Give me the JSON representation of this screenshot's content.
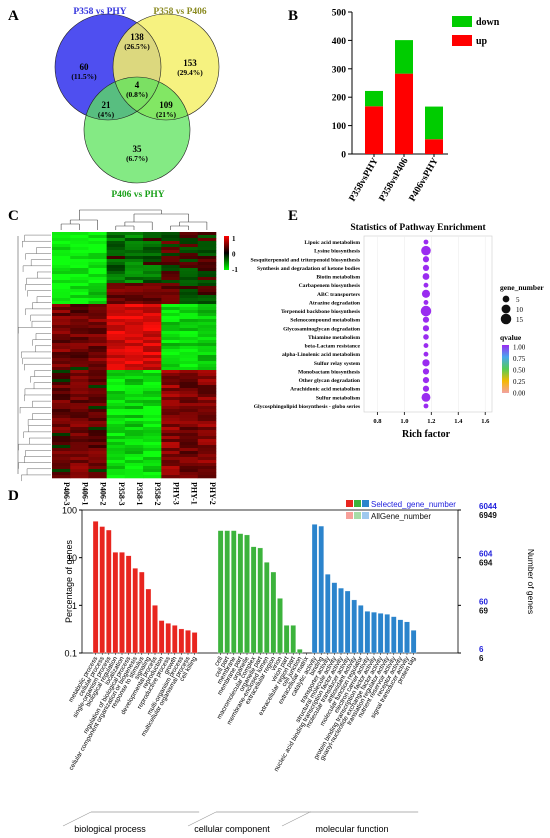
{
  "panels": {
    "a": "A",
    "b": "B",
    "c": "C",
    "d": "D",
    "e": "E"
  },
  "chart_data": [
    {
      "panel": "A",
      "type": "venn",
      "sets": [
        "P358 vs PHY",
        "P358 vs P406",
        "P406 vs PHY"
      ],
      "set_colors": [
        "#4f4ff0",
        "#f5f06a",
        "#5be35b"
      ],
      "regions": [
        {
          "sets": [
            "P358 vs PHY"
          ],
          "count": "60",
          "pct": "(11.5%)"
        },
        {
          "sets": [
            "P358 vs P406"
          ],
          "count": "153",
          "pct": "(29.4%)"
        },
        {
          "sets": [
            "P406 vs PHY"
          ],
          "count": "35",
          "pct": "(6.7%)"
        },
        {
          "sets": [
            "P358 vs PHY",
            "P358 vs P406"
          ],
          "count": "138",
          "pct": "(26.5%)"
        },
        {
          "sets": [
            "P358 vs PHY",
            "P406 vs PHY"
          ],
          "count": "21",
          "pct": "(4%)"
        },
        {
          "sets": [
            "P358 vs P406",
            "P406 vs PHY"
          ],
          "count": "109",
          "pct": "(21%)"
        },
        {
          "sets": [
            "P358 vs PHY",
            "P358 vs P406",
            "P406 vs PHY"
          ],
          "count": "4",
          "pct": "(0.8%)"
        }
      ]
    },
    {
      "panel": "B",
      "type": "bar",
      "stacked": true,
      "categories": [
        "P358vsPHY",
        "P358vsP406",
        "P406vsPHY"
      ],
      "series": [
        {
          "name": "up",
          "color": "#ff0000",
          "values": [
            168,
            283,
            52
          ]
        },
        {
          "name": "down",
          "color": "#00cc00",
          "values": [
            54,
            118,
            115
          ]
        }
      ],
      "ylim": [
        0,
        500
      ],
      "yticks": [
        "0",
        "100",
        "200",
        "300",
        "400",
        "500"
      ],
      "legend": "top-right"
    },
    {
      "panel": "C",
      "type": "heatmap",
      "columns": [
        "P406-3",
        "P406-1",
        "P406-2",
        "P358-3",
        "P358-1",
        "P358-2",
        "PHY-3",
        "PHY-1",
        "PHY-2"
      ],
      "scale_labels": [
        "1",
        "0",
        "-1"
      ],
      "colors": {
        "high": "#ff0000",
        "mid": "#000000",
        "low": "#00ff00"
      }
    },
    {
      "panel": "E",
      "type": "scatter",
      "title": "Statistics of Pathway Enrichment",
      "xlabel": "Rich factor",
      "xticks": [
        "0.8",
        "1.0",
        "1.2",
        "1.4",
        "1.6"
      ],
      "xlim": [
        0.7,
        1.65
      ],
      "categories": [
        "Lipoic acid metabolism",
        "Lysine biosynthesis",
        "Sesquiterpenoid and triterpenoid biosynthesis",
        "Synthesis and degradation of ketone bodies",
        "Biotin metabolism",
        "Carbapenem biosynthesis",
        "ABC transporters",
        "Atrazine degradation",
        "Terpenoid backbone biosynthesis",
        "Selenocompound metabolism",
        "Glycosaminoglycan degradation",
        "Thiamine metabolism",
        "beta-Lactam resistance",
        "alpha-Linolenic acid metabolism",
        "Sulfur relay system",
        "Monobactam biosynthesis",
        "Other glycan degradation",
        "Arachidonic acid metabolism",
        "Sulfur metabolism",
        "Glycosphingolipid biosynthesis - globo series"
      ],
      "rich_factor": [
        1.16,
        1.16,
        1.16,
        1.16,
        1.16,
        1.16,
        1.16,
        1.16,
        1.16,
        1.16,
        1.16,
        1.16,
        1.16,
        1.16,
        1.16,
        1.16,
        1.16,
        1.16,
        1.16,
        1.16
      ],
      "gene_number": [
        2,
        12,
        4,
        4,
        5,
        2,
        8,
        2,
        15,
        4,
        4,
        3,
        2,
        2,
        6,
        4,
        4,
        4,
        10,
        2
      ],
      "qvalue": [
        1.0,
        0.98,
        1.0,
        1.0,
        1.0,
        1.0,
        0.97,
        1.0,
        0.95,
        1.0,
        1.0,
        1.0,
        1.0,
        1.0,
        0.98,
        1.0,
        1.0,
        1.0,
        0.96,
        1.0
      ],
      "legend": {
        "size_title": "gene_number",
        "size_values": [
          "5",
          "10",
          "15"
        ],
        "color_title": "qvalue",
        "color_ticks": [
          "1.00",
          "0.75",
          "0.50",
          "0.25",
          "0.00"
        ]
      }
    },
    {
      "panel": "D",
      "type": "bar",
      "ylabel": "Percentage of genes",
      "ylabel_right": "Number of genes",
      "yscale": "log",
      "ylim": [
        0.1,
        100
      ],
      "yticks_left": [
        "100",
        "10",
        "1",
        "0.1"
      ],
      "yticks_right_selected": [
        "6044",
        "604",
        "60",
        "6"
      ],
      "yticks_right_all": [
        "6949",
        "694",
        "69",
        "6"
      ],
      "legend": [
        "Selected_gene_number",
        "AllGene_number"
      ],
      "groups": [
        {
          "name": "biological process",
          "color": "#e8251f",
          "light": "#f7a09a",
          "categories": [
            "metabolic process",
            "cellular process",
            "single-organism process",
            "biological regulation",
            "localization",
            "regulation of biological process",
            "cellular component organization or biogenesis",
            "response to stimulus",
            "signaling",
            "developmental process",
            "reproduction",
            "reproductive process",
            "growth",
            "multi-organism process",
            "multicellular organismal process",
            "cell killing"
          ],
          "values": [
            58,
            45,
            38,
            13,
            13,
            11,
            6,
            5,
            2.2,
            1.0,
            0.48,
            0.42,
            0.38,
            0.32,
            0.3,
            0.27
          ]
        },
        {
          "name": "cellular component",
          "color": "#3cb33c",
          "light": "#a6dca6",
          "categories": [
            "cell",
            "cell part",
            "membrane",
            "membrane part",
            "organelle",
            "macromolecular complex",
            "organelle part",
            "membrane-enclosed lumen",
            "extracellular region",
            "virion",
            "virion part",
            "extracellular region part",
            "cell junction",
            "extracellular matrix"
          ],
          "values": [
            37,
            37,
            37,
            32,
            30,
            17,
            16,
            8,
            5,
            1.4,
            0.38,
            0.38,
            0.12,
            0.1
          ]
        },
        {
          "name": "molecular function",
          "color": "#2b84cc",
          "light": "#9ec9ee",
          "categories": [
            "catalytic activity",
            "binding",
            "transporter activity",
            "structural molecule activity",
            "nucleic acid binding transcription factor activity",
            "molecular transducer activity",
            "antioxidant activity",
            "molecular function regulator",
            "electron carrier activity",
            "protein binding transcription factor activity",
            "guanyl-nucleotide exchange factor activity",
            "translation regulator activity",
            "nutrient reservoir activity",
            "receptor activity",
            "signal transducer activity",
            "protein tag"
          ],
          "values": [
            50,
            46,
            4.5,
            3,
            2.3,
            2,
            1.3,
            1.0,
            0.75,
            0.72,
            0.68,
            0.65,
            0.58,
            0.5,
            0.45,
            0.3
          ]
        }
      ]
    }
  ]
}
